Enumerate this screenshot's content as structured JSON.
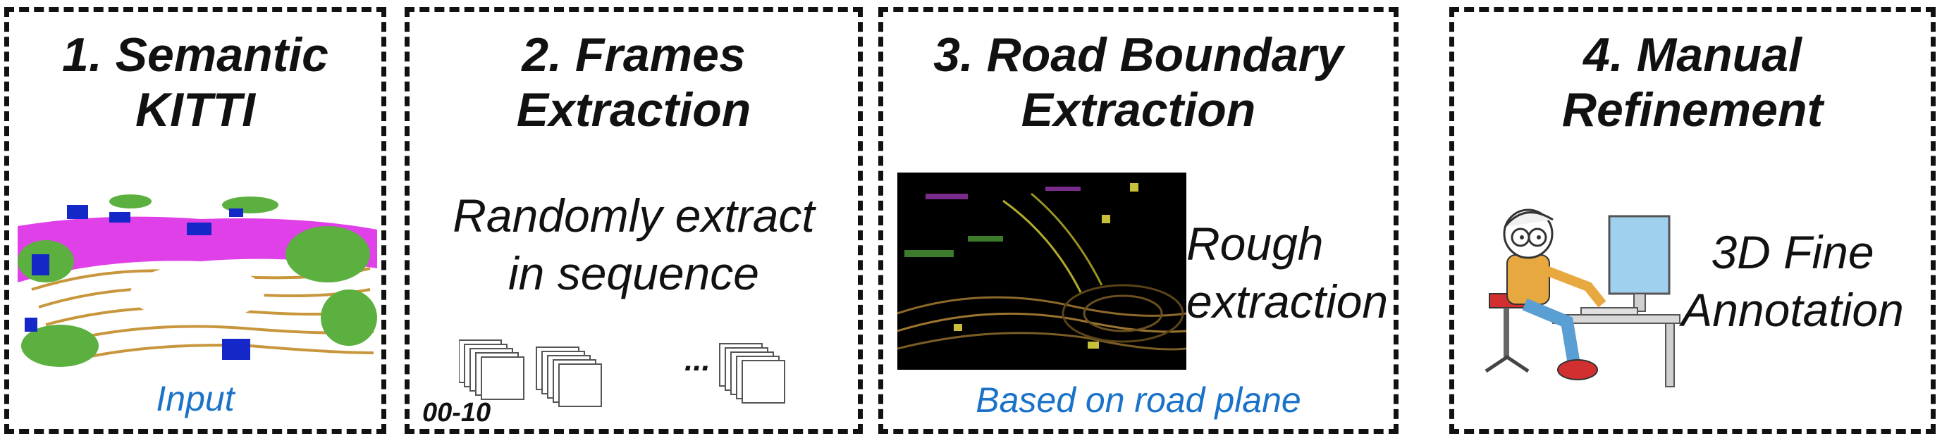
{
  "panels": [
    {
      "title_line1": "1. Semantic",
      "title_line2": "KITTI",
      "image_label": "semantic-kitti-pointcloud",
      "caption": "Input"
    },
    {
      "title_line1": "2. Frames",
      "title_line2": "Extraction",
      "text_line1": "Randomly extract",
      "text_line2": "in sequence",
      "ellipsis": "...",
      "sequence_label": "00-10"
    },
    {
      "title_line1": "3. Road Boundary",
      "title_line2": "Extraction",
      "text_line1": "Rough",
      "text_line2": "extraction",
      "caption": "Based on road plane"
    },
    {
      "title_line1": "4. Manual",
      "title_line2": "Refinement",
      "text_line1": "3D Fine",
      "text_line2": "Annotation"
    }
  ],
  "colors": {
    "caption_blue": "#1a73c8",
    "border": "#111111",
    "pc_magenta": "#e040e8",
    "pc_brown": "#c8963c",
    "pc_green": "#5cb040",
    "pc_blue": "#1428c8"
  }
}
